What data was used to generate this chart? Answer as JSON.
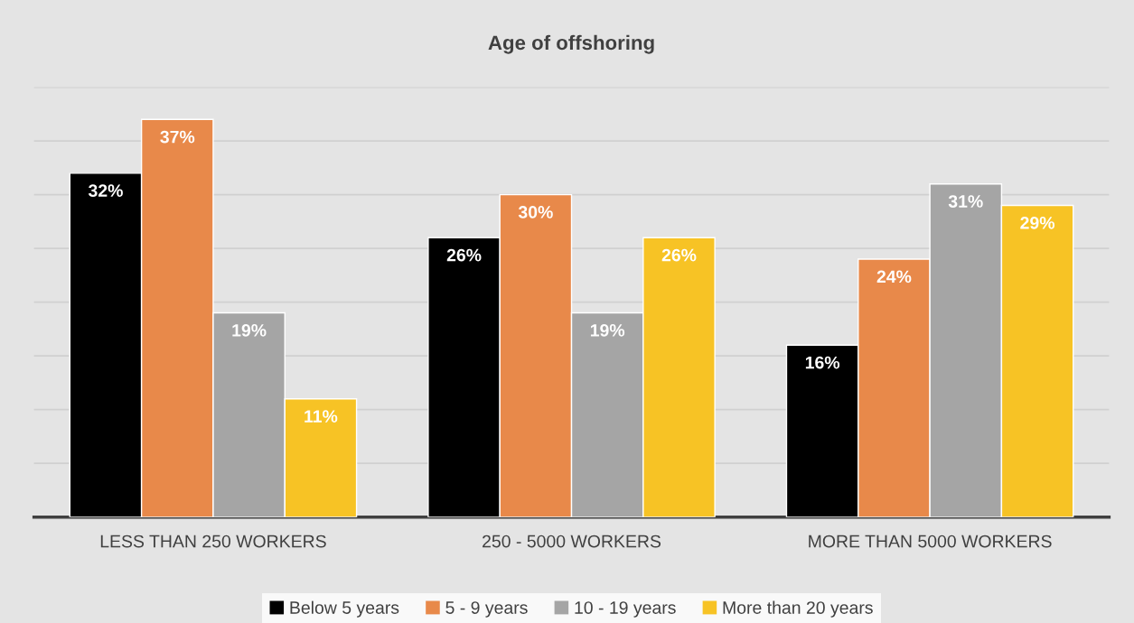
{
  "chart_data": {
    "type": "bar",
    "title": "Age of offshoring",
    "categories": [
      "LESS THAN 250 WORKERS",
      "250 - 5000 WORKERS",
      "MORE THAN 5000 WORKERS"
    ],
    "series": [
      {
        "name": "Below 5 years",
        "color": "#000000",
        "values": [
          32,
          26,
          16
        ],
        "value_labels": [
          "32%",
          "26%",
          "16%"
        ]
      },
      {
        "name": "5 - 9 years",
        "color": "#e8894a",
        "values": [
          37,
          30,
          24
        ],
        "value_labels": [
          "37%",
          "30%",
          "24%"
        ]
      },
      {
        "name": "10 - 19 years",
        "color": "#a5a5a5",
        "values": [
          19,
          19,
          31
        ],
        "value_labels": [
          "19%",
          "19%",
          "31%"
        ]
      },
      {
        "name": "More than 20 years",
        "color": "#f7c325",
        "values": [
          11,
          26,
          29
        ],
        "value_labels": [
          "11%",
          "26%",
          "29%"
        ]
      }
    ],
    "ylim": [
      0,
      40
    ],
    "yticks": [
      {
        "value": 0,
        "label": null
      },
      {
        "value": 5,
        "label": null
      },
      {
        "value": 10,
        "label": null
      },
      {
        "value": 15,
        "label": null
      },
      {
        "value": 20,
        "label": null
      },
      {
        "value": 25,
        "label": null
      },
      {
        "value": 30,
        "label": null
      },
      {
        "value": 35,
        "label": null
      },
      {
        "value": 40,
        "label": null
      }
    ],
    "grid": "y",
    "legend": "bottom",
    "tick_labels": "x"
  }
}
